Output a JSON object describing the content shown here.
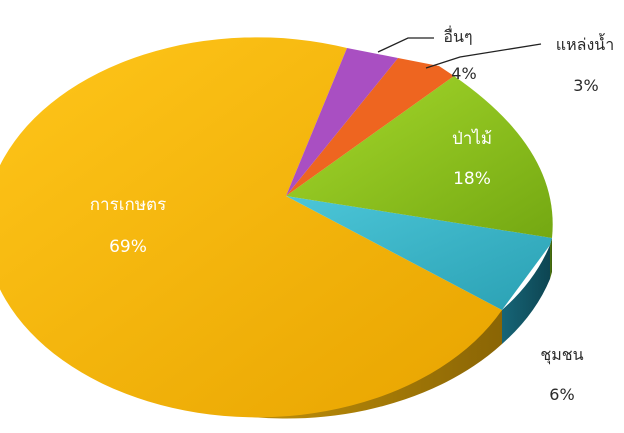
{
  "chart_data": {
    "type": "pie",
    "three_d": true,
    "legend": "none",
    "slices": [
      {
        "key": "forest",
        "name": "ป่าไม้",
        "value": 18,
        "value_label": "18%",
        "color": "#8bc21d"
      },
      {
        "key": "community",
        "name": "ชุมชน",
        "value": 6,
        "value_label": "6%",
        "color": "#36b4c7"
      },
      {
        "key": "agriculture",
        "name": "การเกษตร",
        "value": 69,
        "value_label": "69%",
        "color": "#f6b401"
      },
      {
        "key": "other",
        "name": "อื่นๆ",
        "value": 4,
        "value_label": "4%",
        "color": "#a94fc2"
      },
      {
        "key": "water",
        "name": "แหล่งน้ำ",
        "value": 3,
        "value_label": "3%",
        "color": "#ee6520"
      }
    ]
  }
}
